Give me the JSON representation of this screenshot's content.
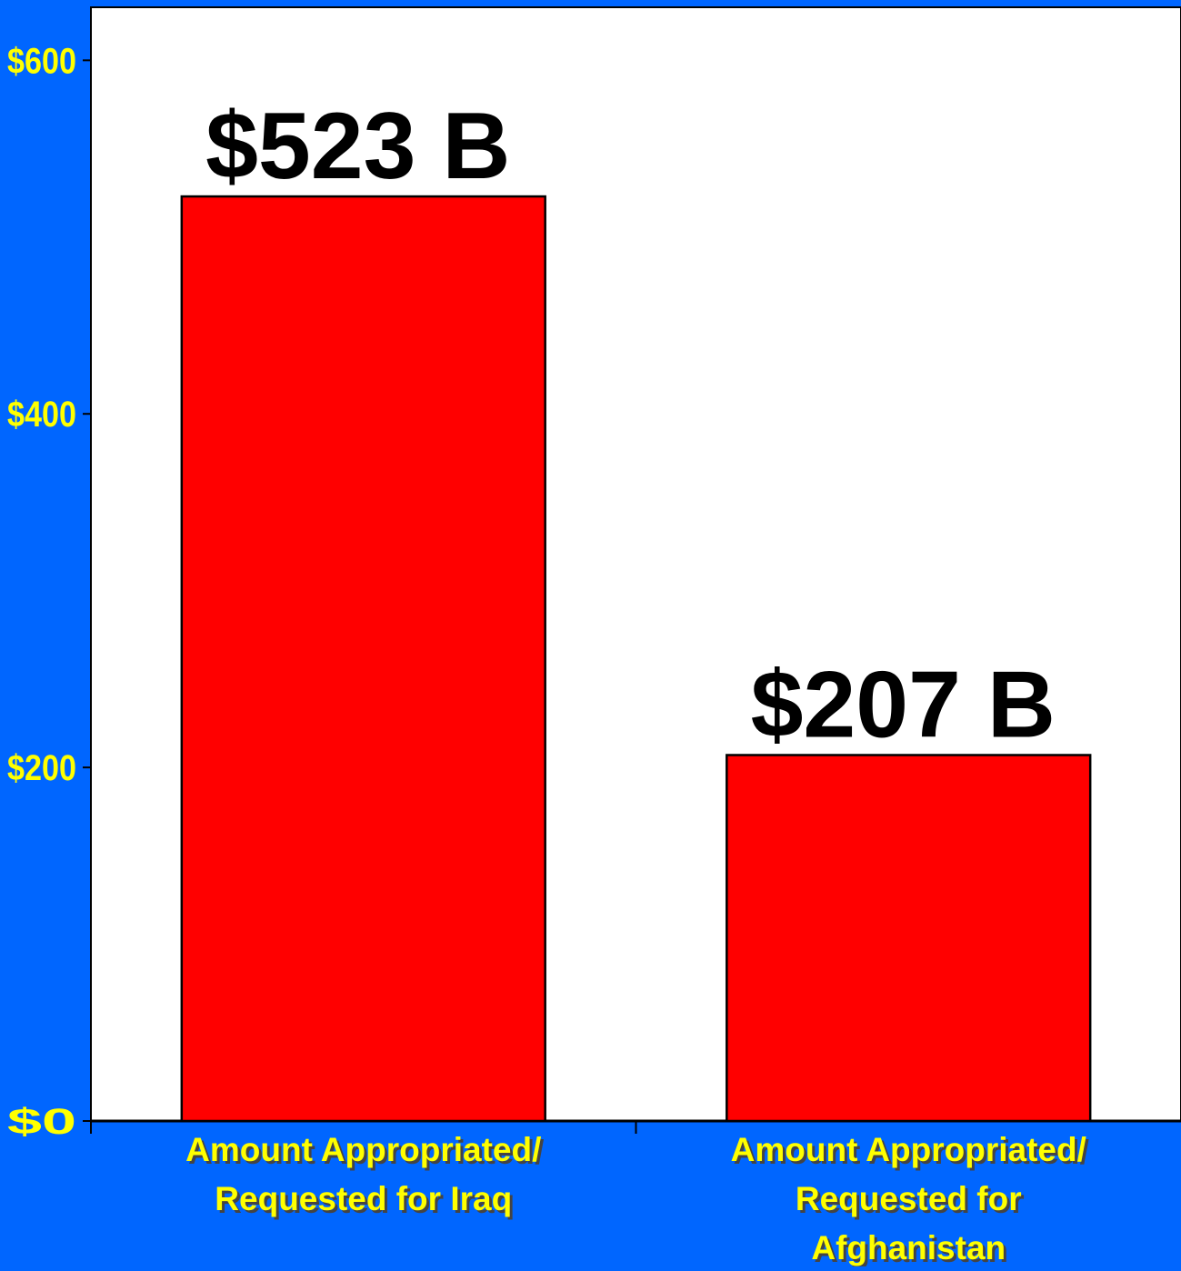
{
  "colors": {
    "background": "#0066ff",
    "plot_area": "#ffffff",
    "bar_fill": "#ff0000",
    "bar_stroke": "#000000",
    "tick_text": "#ffff00",
    "category_text": "#ffff00",
    "data_label_text": "#000000"
  },
  "chart_data": {
    "type": "bar",
    "title": "",
    "xlabel": "",
    "ylabel": "",
    "ylim": [
      0,
      630
    ],
    "yticks": [
      0,
      200,
      400,
      600
    ],
    "ytick_labels": [
      "$0",
      "$200",
      "$400",
      "$600"
    ],
    "categories": [
      [
        "Amount Appropriated/",
        "Requested for Iraq"
      ],
      [
        "Amount Appropriated/",
        "Requested for",
        "Afghanistan"
      ]
    ],
    "values": [
      523,
      207
    ],
    "data_labels": [
      "$523 B",
      "$207 B"
    ],
    "grid": false,
    "legend": "none"
  }
}
